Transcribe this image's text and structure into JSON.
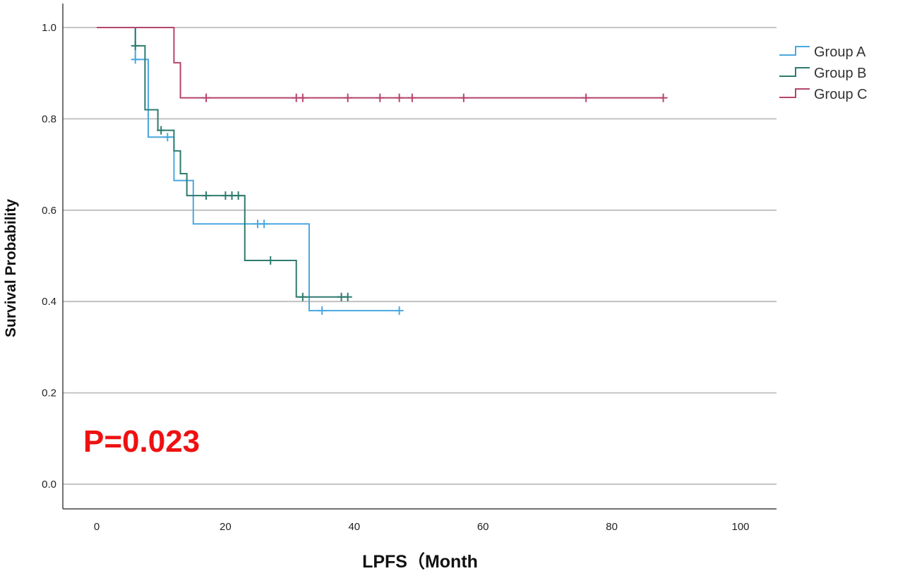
{
  "chart_data": {
    "type": "line",
    "subtype": "kaplan-meier-step",
    "xlabel": "LPFS（Month",
    "ylabel": "Survival Probability",
    "xlim": [
      -5,
      105
    ],
    "ylim": [
      -0.05,
      1.05
    ],
    "xticks": [
      0,
      20,
      40,
      60,
      80,
      100
    ],
    "yticks": [
      0.0,
      0.2,
      0.4,
      0.6,
      0.8,
      1.0
    ],
    "ytick_labels": [
      "0.0",
      "0.2",
      "0.4",
      "0.6",
      "0.8",
      "1.0"
    ],
    "grid": "horizontal",
    "legend_position": "top-right",
    "annotation": {
      "text": "P=0.023",
      "color": "#ee1111"
    },
    "series": [
      {
        "name": "Group A",
        "color": "#4aa8e0",
        "steps": [
          [
            0,
            1.0
          ],
          [
            6,
            0.93
          ],
          [
            8,
            0.76
          ],
          [
            12,
            0.665
          ],
          [
            15,
            0.57
          ],
          [
            33,
            0.38
          ],
          [
            47,
            0.38
          ]
        ],
        "censored": [
          [
            6,
            0.93
          ],
          [
            11,
            0.76
          ],
          [
            25,
            0.57
          ],
          [
            26,
            0.57
          ],
          [
            35,
            0.38
          ],
          [
            47,
            0.38
          ]
        ]
      },
      {
        "name": "Group B",
        "color": "#2e7a6e",
        "steps": [
          [
            0,
            1.0
          ],
          [
            6,
            0.96
          ],
          [
            7.5,
            0.82
          ],
          [
            9.5,
            0.775
          ],
          [
            12,
            0.73
          ],
          [
            13,
            0.68
          ],
          [
            14,
            0.632
          ],
          [
            23,
            0.49
          ],
          [
            31,
            0.41
          ],
          [
            39,
            0.41
          ]
        ],
        "censored": [
          [
            6,
            0.96
          ],
          [
            10,
            0.775
          ],
          [
            17,
            0.632
          ],
          [
            20,
            0.632
          ],
          [
            21,
            0.632
          ],
          [
            22,
            0.632
          ],
          [
            27,
            0.49
          ],
          [
            32,
            0.41
          ],
          [
            38,
            0.41
          ],
          [
            39,
            0.41
          ]
        ]
      },
      {
        "name": "Group C",
        "color": "#b5446e",
        "steps": [
          [
            0,
            1.0
          ],
          [
            12,
            0.923
          ],
          [
            13,
            0.846
          ],
          [
            88,
            0.846
          ]
        ],
        "censored": [
          [
            17,
            0.846
          ],
          [
            31,
            0.846
          ],
          [
            32,
            0.846
          ],
          [
            39,
            0.846
          ],
          [
            44,
            0.846
          ],
          [
            47,
            0.846
          ],
          [
            49,
            0.846
          ],
          [
            57,
            0.846
          ],
          [
            76,
            0.846
          ],
          [
            88,
            0.846
          ]
        ]
      }
    ]
  }
}
